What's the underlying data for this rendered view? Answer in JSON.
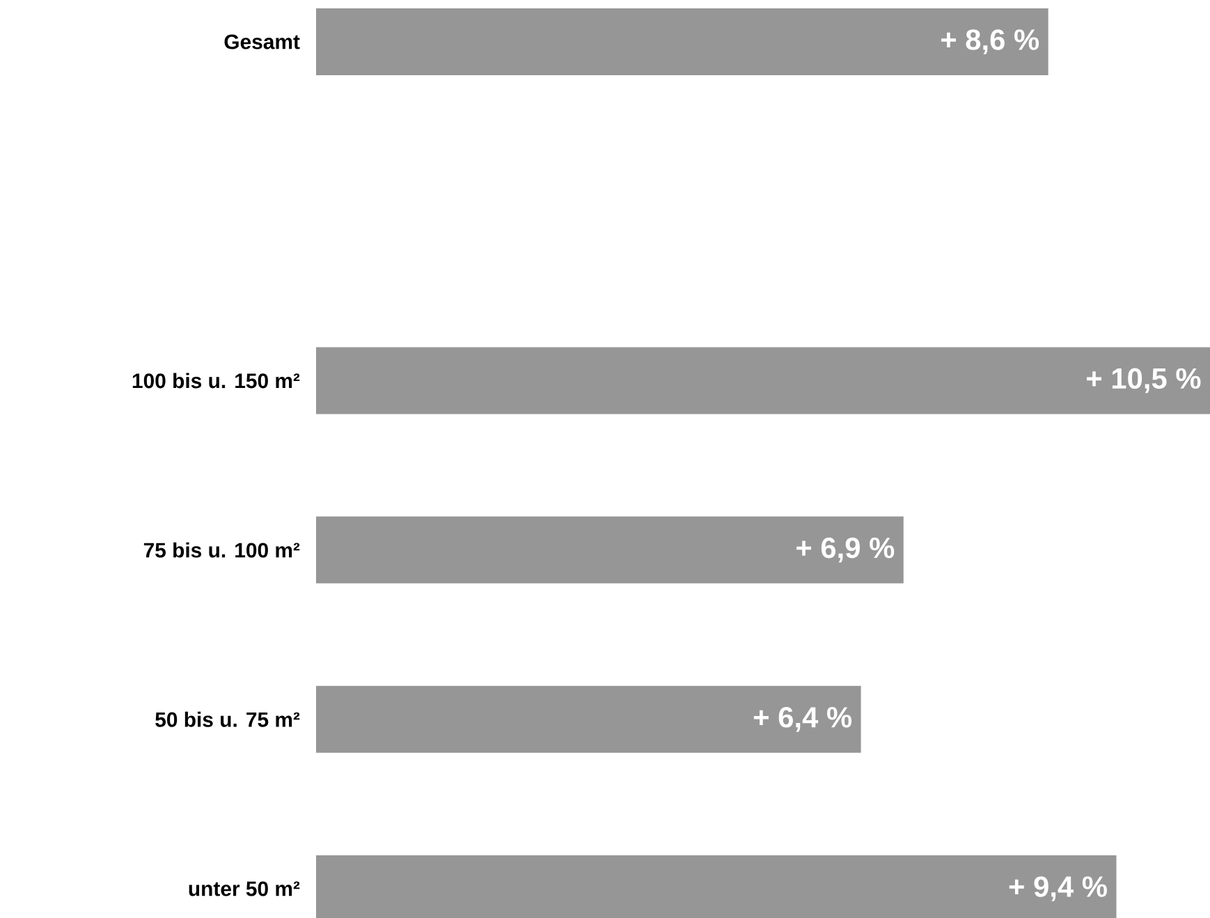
{
  "chart_data": {
    "type": "bar",
    "orientation": "horizontal",
    "color": "#969696",
    "categories": [
      "Gesamt",
      null,
      "100 bis u. 150 m²",
      "75 bis u. 100 m²",
      "50 bis u. 75 m²",
      "unter 50 m²"
    ],
    "values": [
      8.6,
      null,
      10.5,
      6.9,
      6.4,
      9.4
    ],
    "value_labels": [
      "+ 8,6 %",
      null,
      "+ 10,5 %",
      "+ 6,9 %",
      "+ 6,4 %",
      "+ 9,4 %"
    ]
  }
}
